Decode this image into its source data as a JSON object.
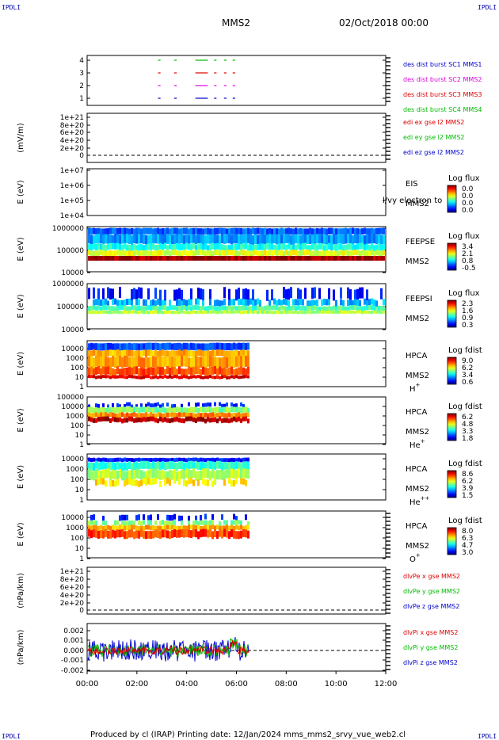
{
  "header": {
    "title": "MMS2",
    "date": "02/Oct/2018 00:00"
  },
  "corners": {
    "tl": "IPDLI",
    "tr": "IPDLI",
    "bl": "IPDLI",
    "br": "IPDLI"
  },
  "footer": {
    "text": "Produced by cl (IRAP)   Printing date: 12/Jan/2024   mms_mms2_srvy_vue_web2.cl"
  },
  "x_axis": {
    "ticks": [
      "00:00",
      "02:00",
      "04:00",
      "06:00",
      "08:00",
      "10:00",
      "12:00"
    ]
  },
  "colors": {
    "red": "#dd0000",
    "green": "#00bb00",
    "blue": "#0000cc",
    "magenta": "#dd00dd"
  },
  "panels": {
    "p1": {
      "yticks": [
        "4",
        "3",
        "2",
        "1"
      ],
      "legend": [
        {
          "text": "des dist burst SC1 MMS1",
          "color": "#0000cc"
        },
        {
          "text": "des dist burst SC2 MMS2",
          "color": "#dd00dd"
        },
        {
          "text": "des dist burst SC3 MMS3",
          "color": "#dd0000"
        },
        {
          "text": "des dist burst SC4 MMS4",
          "color": "#00bb00"
        }
      ]
    },
    "p2": {
      "ylabel": "(mV/m)",
      "yticks": [
        "1e+21",
        "8e+20",
        "6e+20",
        "4e+20",
        "2e+20",
        "0"
      ],
      "legend": [
        {
          "text": "edi ex gse l2 MMS2",
          "color": "#dd0000"
        },
        {
          "text": "edi ey gse l2 MMS2",
          "color": "#00bb00"
        },
        {
          "text": "edi ez gse l2 MMS2",
          "color": "#0000cc"
        }
      ]
    },
    "p3": {
      "ylabel": "E (eV)",
      "yticks": [
        "1e+07",
        "1e+06",
        "1e+05",
        "1e+04"
      ],
      "label1": "EIS",
      "label2": "MMS2",
      "overlay": "l/vy electron to",
      "cbar_title": "Log flux",
      "cbar_ticks": [
        "0.0",
        "0.0",
        "0.0",
        "0.0"
      ]
    },
    "p4": {
      "ylabel": "E (eV)",
      "yticks": [
        "1000000",
        "100000",
        "10000"
      ],
      "label1": "FEEPSE",
      "label2": "MMS2",
      "cbar_title": "Log flux",
      "cbar_ticks": [
        "3.4",
        "2.1",
        "0.8",
        "-0.5"
      ]
    },
    "p5": {
      "ylabel": "E (eV)",
      "yticks": [
        "1000000",
        "100000",
        "10000"
      ],
      "label1": "FEEPSI",
      "label2": "MMS2",
      "cbar_title": "Log flux",
      "cbar_ticks": [
        "2.3",
        "1.6",
        "0.9",
        "0.3"
      ]
    },
    "p6": {
      "ylabel": "E (eV)",
      "yticks": [
        "10000",
        "1000",
        "100",
        "10",
        "1"
      ],
      "label1": "HPCA",
      "label2": "MMS2",
      "species": "H",
      "species_sup": "+",
      "cbar_title": "Log fdist",
      "cbar_ticks": [
        "9.0",
        "6.2",
        "3.4",
        "0.6"
      ]
    },
    "p7": {
      "ylabel": "E (eV)",
      "yticks": [
        "100000",
        "10000",
        "1000",
        "100",
        "10",
        "1"
      ],
      "label1": "HPCA",
      "label2": "MMS2",
      "species": "He",
      "species_sup": "+",
      "cbar_title": "Log fdist",
      "cbar_ticks": [
        "6.2",
        "4.8",
        "3.3",
        "1.8"
      ]
    },
    "p8": {
      "ylabel": "E (eV)",
      "yticks": [
        "10000",
        "1000",
        "100",
        "10",
        "1"
      ],
      "label1": "HPCA",
      "label2": "MMS2",
      "species": "He",
      "species_sup": "++",
      "cbar_title": "Log fdist",
      "cbar_ticks": [
        "8.6",
        "6.2",
        "3.9",
        "1.5"
      ]
    },
    "p9": {
      "ylabel": "E (eV)",
      "yticks": [
        "10000",
        "1000",
        "100",
        "10",
        "1"
      ],
      "label1": "HPCA",
      "label2": "MMS2",
      "species": "O",
      "species_sup": "+",
      "cbar_title": "Log fdist",
      "cbar_ticks": [
        "8.0",
        "6.3",
        "4.7",
        "3.0"
      ]
    },
    "p10": {
      "ylabel": "(nPa/km)",
      "yticks": [
        "1e+21",
        "8e+20",
        "6e+20",
        "4e+20",
        "2e+20",
        "0"
      ],
      "legend": [
        {
          "text": "dlvPe x gse MMS2",
          "color": "#dd0000"
        },
        {
          "text": "dlvPe y gse MMS2",
          "color": "#00bb00"
        },
        {
          "text": "dlvPe z gse MMS2",
          "color": "#0000cc"
        }
      ]
    },
    "p11": {
      "ylabel": "(nPa/km)",
      "yticks": [
        "0.002",
        "0.001",
        "0.000",
        "-0.001",
        "-0.002"
      ],
      "legend": [
        {
          "text": "dlvPi x gse MMS2",
          "color": "#dd0000"
        },
        {
          "text": "dlvPi y gse MMS2",
          "color": "#00bb00"
        },
        {
          "text": "dlvPi z gse MMS2",
          "color": "#0000cc"
        }
      ]
    }
  },
  "chart_data": {
    "type": "heatmap",
    "x_range_hours": [
      0,
      12
    ],
    "data_end_hours": 6.5,
    "burst_intervals_hours": [
      [
        2.85,
        2.95
      ],
      [
        3.5,
        3.6
      ],
      [
        4.35,
        4.85
      ],
      [
        5.1,
        5.2
      ],
      [
        5.5,
        5.6
      ],
      [
        5.85,
        5.95
      ]
    ]
  }
}
